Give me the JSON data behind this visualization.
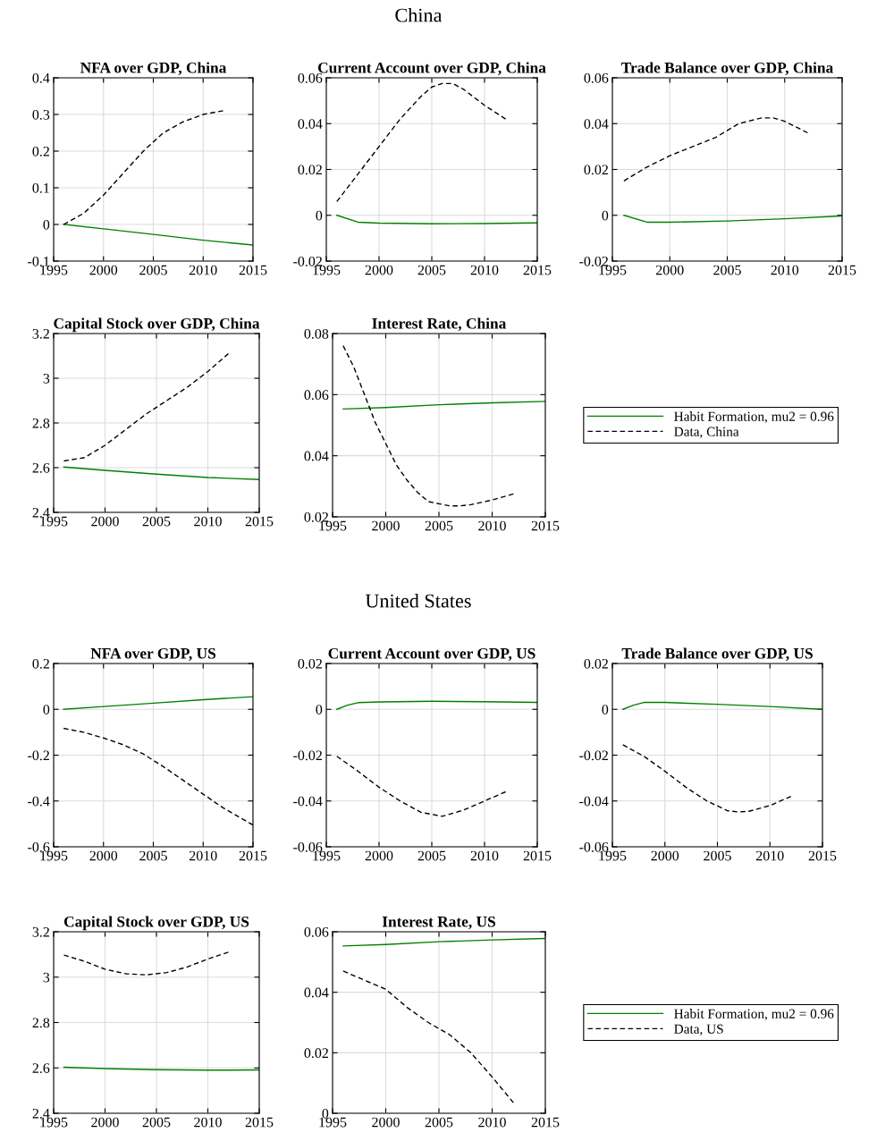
{
  "chart_data": [
    {
      "type": "other",
      "title": "China"
    },
    {
      "type": "line",
      "title": "NFA over GDP, China",
      "xlim": [
        1995,
        2015
      ],
      "xticks": [
        1995,
        2000,
        2005,
        2010,
        2015
      ],
      "ylim": [
        -0.1,
        0.4
      ],
      "yticks": [
        -0.1,
        0,
        0.1,
        0.2,
        0.3,
        0.4
      ],
      "grid": true,
      "series": [
        {
          "color": "#008000",
          "line_style": "solid",
          "x": [
            1996,
            2000,
            2005,
            2010,
            2015
          ],
          "values": [
            0,
            -0.012,
            -0.027,
            -0.043,
            -0.056
          ]
        },
        {
          "color": "#000000",
          "line_style": "dashed",
          "x": [
            1996,
            1998,
            2000,
            2002,
            2004,
            2006,
            2008,
            2010,
            2012
          ],
          "values": [
            0,
            0.03,
            0.08,
            0.14,
            0.2,
            0.25,
            0.28,
            0.3,
            0.31
          ]
        }
      ]
    },
    {
      "type": "line",
      "title": "Current Account over GDP, China",
      "xlim": [
        1995,
        2015
      ],
      "xticks": [
        1995,
        2000,
        2005,
        2010,
        2015
      ],
      "ylim": [
        -0.02,
        0.06
      ],
      "yticks": [
        -0.02,
        0,
        0.02,
        0.04,
        0.06
      ],
      "grid": true,
      "series": [
        {
          "color": "#008000",
          "line_style": "solid",
          "x": [
            1996,
            1998,
            2000,
            2005,
            2010,
            2015
          ],
          "values": [
            0,
            -0.003,
            -0.0034,
            -0.0037,
            -0.0036,
            -0.0033
          ]
        },
        {
          "color": "#000000",
          "line_style": "dashed",
          "x": [
            1996,
            1998,
            2000,
            2002,
            2004,
            2005,
            2006,
            2007,
            2008,
            2010,
            2012
          ],
          "values": [
            0.006,
            0.018,
            0.03,
            0.042,
            0.052,
            0.056,
            0.0575,
            0.0575,
            0.055,
            0.048,
            0.042
          ]
        }
      ]
    },
    {
      "type": "line",
      "title": "Trade Balance over GDP, China",
      "xlim": [
        1995,
        2015
      ],
      "xticks": [
        1995,
        2000,
        2005,
        2010,
        2015
      ],
      "ylim": [
        -0.02,
        0.06
      ],
      "yticks": [
        -0.02,
        0,
        0.02,
        0.04,
        0.06
      ],
      "grid": true,
      "series": [
        {
          "color": "#008000",
          "line_style": "solid",
          "x": [
            1996,
            1998,
            2000,
            2005,
            2010,
            2015
          ],
          "values": [
            0,
            -0.003,
            -0.003,
            -0.0025,
            -0.0015,
            -0.0003
          ]
        },
        {
          "color": "#000000",
          "line_style": "dashed",
          "x": [
            1996,
            1998,
            2000,
            2002,
            2004,
            2006,
            2008,
            2009,
            2010,
            2012
          ],
          "values": [
            0.015,
            0.021,
            0.026,
            0.03,
            0.034,
            0.04,
            0.0425,
            0.0425,
            0.041,
            0.036
          ]
        }
      ]
    },
    {
      "type": "line",
      "title": "Capital Stock over GDP, China",
      "xlim": [
        1995,
        2015
      ],
      "xticks": [
        1995,
        2000,
        2005,
        2010,
        2015
      ],
      "ylim": [
        2.4,
        3.2
      ],
      "yticks": [
        2.4,
        2.6,
        2.8,
        3,
        3.2
      ],
      "grid": true,
      "series": [
        {
          "color": "#008000",
          "line_style": "solid",
          "x": [
            1996,
            2000,
            2005,
            2010,
            2015
          ],
          "values": [
            2.603,
            2.588,
            2.571,
            2.556,
            2.547
          ]
        },
        {
          "color": "#000000",
          "line_style": "dashed",
          "x": [
            1996,
            1998,
            2000,
            2002,
            2004,
            2006,
            2008,
            2010,
            2012
          ],
          "values": [
            2.63,
            2.645,
            2.7,
            2.77,
            2.84,
            2.9,
            2.96,
            3.03,
            3.11
          ]
        }
      ]
    },
    {
      "type": "line",
      "title": "Interest Rate, China",
      "xlim": [
        1995,
        2015
      ],
      "xticks": [
        1995,
        2000,
        2005,
        2010,
        2015
      ],
      "ylim": [
        0.02,
        0.08
      ],
      "yticks": [
        0.02,
        0.04,
        0.06,
        0.08
      ],
      "grid": true,
      "legend": "right",
      "series": [
        {
          "name": "Habit Formation, mu2 = 0.96",
          "color": "#008000",
          "line_style": "solid",
          "x": [
            1996,
            2000,
            2005,
            2010,
            2015
          ],
          "values": [
            0.0553,
            0.0558,
            0.0567,
            0.0573,
            0.0578
          ]
        },
        {
          "name": "Data, China",
          "color": "#000000",
          "line_style": "dashed",
          "x": [
            1996,
            1997,
            1998,
            1999,
            2000,
            2001,
            2002,
            2003,
            2004,
            2005,
            2006,
            2007,
            2008,
            2010,
            2012
          ],
          "values": [
            0.076,
            0.069,
            0.06,
            0.051,
            0.044,
            0.037,
            0.032,
            0.028,
            0.025,
            0.0243,
            0.0236,
            0.0236,
            0.024,
            0.0255,
            0.0275
          ]
        }
      ]
    },
    {
      "type": "other",
      "title": "United States"
    },
    {
      "type": "line",
      "title": "NFA over GDP, US",
      "xlim": [
        1995,
        2015
      ],
      "xticks": [
        1995,
        2000,
        2005,
        2010,
        2015
      ],
      "ylim": [
        -0.6,
        0.2
      ],
      "yticks": [
        -0.6,
        -0.4,
        -0.2,
        0,
        0.2
      ],
      "grid": true,
      "series": [
        {
          "color": "#008000",
          "line_style": "solid",
          "x": [
            1996,
            2000,
            2005,
            2010,
            2015
          ],
          "values": [
            0,
            0.012,
            0.027,
            0.042,
            0.055
          ]
        },
        {
          "color": "#000000",
          "line_style": "dashed",
          "x": [
            1996,
            1998,
            2000,
            2002,
            2004,
            2006,
            2008,
            2010,
            2012,
            2015
          ],
          "values": [
            -0.083,
            -0.1,
            -0.125,
            -0.155,
            -0.195,
            -0.25,
            -0.31,
            -0.37,
            -0.43,
            -0.505
          ]
        }
      ]
    },
    {
      "type": "line",
      "title": "Current Account over GDP, US",
      "xlim": [
        1995,
        2015
      ],
      "xticks": [
        1995,
        2000,
        2005,
        2010,
        2015
      ],
      "ylim": [
        -0.06,
        0.02
      ],
      "yticks": [
        -0.06,
        -0.04,
        -0.02,
        0,
        0.02
      ],
      "grid": true,
      "series": [
        {
          "color": "#008000",
          "line_style": "solid",
          "x": [
            1996,
            1997,
            1998,
            2000,
            2005,
            2010,
            2015
          ],
          "values": [
            0,
            0.0018,
            0.0029,
            0.0032,
            0.0035,
            0.0033,
            0.003
          ]
        },
        {
          "color": "#000000",
          "line_style": "dashed",
          "x": [
            1996,
            1998,
            2000,
            2002,
            2004,
            2006,
            2008,
            2010,
            2012
          ],
          "values": [
            -0.0205,
            -0.027,
            -0.034,
            -0.04,
            -0.045,
            -0.0467,
            -0.044,
            -0.04,
            -0.036
          ]
        }
      ]
    },
    {
      "type": "line",
      "title": "Trade Balance over GDP, US",
      "xlim": [
        1995,
        2015
      ],
      "xticks": [
        1995,
        2000,
        2005,
        2010,
        2015
      ],
      "ylim": [
        -0.06,
        0.02
      ],
      "yticks": [
        -0.06,
        -0.04,
        -0.02,
        0,
        0.02
      ],
      "grid": true,
      "series": [
        {
          "color": "#008000",
          "line_style": "solid",
          "x": [
            1996,
            1997,
            1998,
            2000,
            2005,
            2010,
            2015
          ],
          "values": [
            0,
            0.0018,
            0.003,
            0.003,
            0.0022,
            0.0012,
            0
          ]
        },
        {
          "color": "#000000",
          "line_style": "dashed",
          "x": [
            1996,
            1998,
            2000,
            2002,
            2004,
            2006,
            2007,
            2008,
            2010,
            2012
          ],
          "values": [
            -0.0155,
            -0.0205,
            -0.027,
            -0.034,
            -0.04,
            -0.0443,
            -0.0448,
            -0.0445,
            -0.042,
            -0.038
          ]
        }
      ]
    },
    {
      "type": "line",
      "title": "Capital Stock over GDP, US",
      "xlim": [
        1995,
        2015
      ],
      "xticks": [
        1995,
        2000,
        2005,
        2010,
        2015
      ],
      "ylim": [
        2.4,
        3.2
      ],
      "yticks": [
        2.4,
        2.6,
        2.8,
        3,
        3.2
      ],
      "grid": true,
      "series": [
        {
          "color": "#008000",
          "line_style": "solid",
          "x": [
            1996,
            2000,
            2005,
            2010,
            2015
          ],
          "values": [
            2.603,
            2.597,
            2.592,
            2.59,
            2.591
          ]
        },
        {
          "color": "#000000",
          "line_style": "dashed",
          "x": [
            1996,
            1998,
            2000,
            2002,
            2004,
            2006,
            2008,
            2010,
            2012
          ],
          "values": [
            3.097,
            3.07,
            3.035,
            3.015,
            3.01,
            3.02,
            3.045,
            3.08,
            3.11
          ]
        }
      ]
    },
    {
      "type": "line",
      "title": "Interest Rate, US",
      "xlim": [
        1995,
        2015
      ],
      "xticks": [
        1995,
        2000,
        2005,
        2010,
        2015
      ],
      "ylim": [
        0,
        0.06
      ],
      "yticks": [
        0,
        0.02,
        0.04,
        0.06
      ],
      "grid": true,
      "legend": "right",
      "series": [
        {
          "name": "Habit Formation, mu2 = 0.96",
          "color": "#008000",
          "line_style": "solid",
          "x": [
            1996,
            2000,
            2005,
            2010,
            2015
          ],
          "values": [
            0.0553,
            0.0558,
            0.0567,
            0.0573,
            0.0578
          ]
        },
        {
          "name": "Data, US",
          "color": "#000000",
          "line_style": "dashed",
          "x": [
            1996,
            1998,
            2000,
            2002,
            2004,
            2006,
            2008,
            2010,
            2012
          ],
          "values": [
            0.047,
            0.044,
            0.041,
            0.035,
            0.03,
            0.026,
            0.02,
            0.012,
            0.0035
          ]
        }
      ]
    }
  ]
}
